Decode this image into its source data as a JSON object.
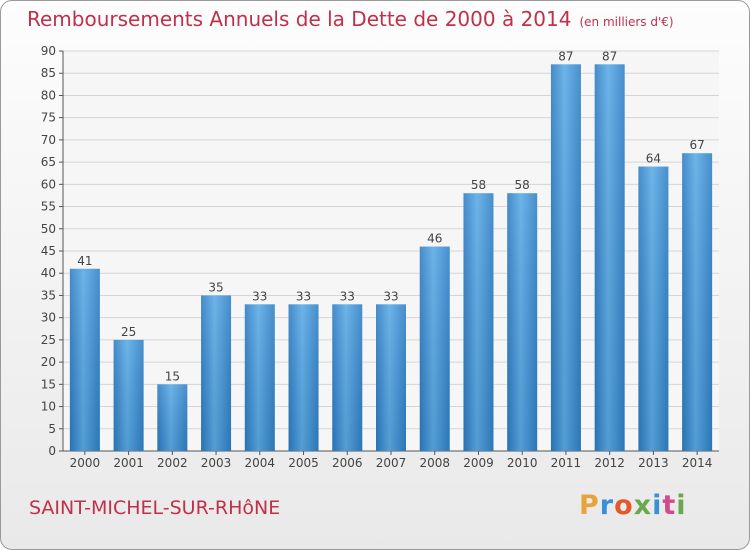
{
  "header": {
    "title": "Remboursements Annuels de la Dette de 2000 à 2014",
    "unit": "(en milliers d'€)"
  },
  "footer": {
    "commune": "SAINT-MICHEL-SUR-RHôNE",
    "logo_letters": [
      "P",
      "r",
      "o",
      "x",
      "i",
      "t",
      "i"
    ],
    "logo_colors": [
      "#e8a33a",
      "#3a8fd6",
      "#e05a2b",
      "#6aa84f",
      "#3a8fd6",
      "#d24a8c",
      "#6aa84f"
    ]
  },
  "colors": {
    "bar": "#3d94d8",
    "bar_light": "#63b2ea",
    "bar_dark": "#2a78bd",
    "title": "#c0304a",
    "axis": "#555555",
    "grid": "#d5d5d5"
  },
  "chart_data": {
    "type": "bar",
    "title": "Remboursements Annuels de la Dette de 2000 à 2014",
    "subtitle": "(en milliers d'€)",
    "categories": [
      "2000",
      "2001",
      "2002",
      "2003",
      "2004",
      "2005",
      "2006",
      "2007",
      "2008",
      "2009",
      "2010",
      "2011",
      "2012",
      "2013",
      "2014"
    ],
    "values": [
      41,
      25,
      15,
      35,
      33,
      33,
      33,
      33,
      46,
      58,
      58,
      87,
      87,
      64,
      67
    ],
    "ylim": [
      0,
      90
    ],
    "yticks": [
      0,
      5,
      10,
      15,
      20,
      25,
      30,
      35,
      40,
      45,
      50,
      55,
      60,
      65,
      70,
      75,
      80,
      85,
      90
    ],
    "grid": true,
    "xlabel": "",
    "ylabel": ""
  }
}
